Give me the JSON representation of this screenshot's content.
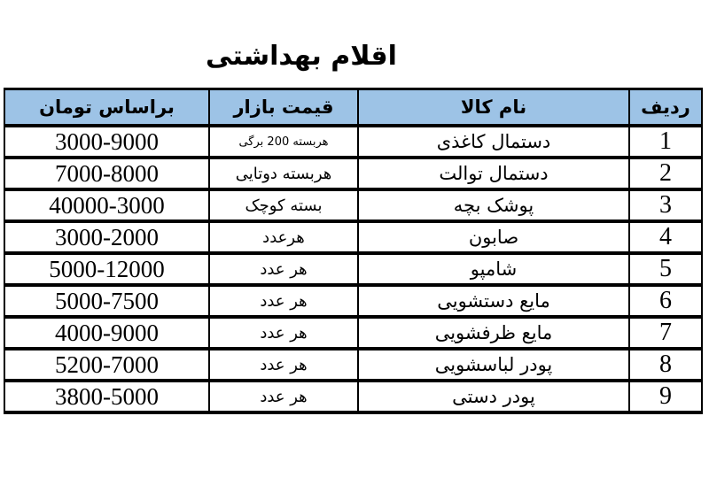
{
  "page": {
    "title": "اقلام بهداشتی"
  },
  "colors": {
    "header_bg": "#9DC3E6",
    "border": "#000000",
    "text": "#000000",
    "background": "#FFFFFF"
  },
  "table": {
    "headers": {
      "row_no": "ردیف",
      "item_name": "نام کالا",
      "market_price": "قیمت بازار",
      "price_toman": "براساس تومان"
    },
    "rows": [
      {
        "no": "1",
        "name": "دستمال کاغذی",
        "unit": "هربسته 200 برگی",
        "price": "3000-9000"
      },
      {
        "no": "2",
        "name": "دستمال توالت",
        "unit": "هربسته دوتایی",
        "price": "7000-8000"
      },
      {
        "no": "3",
        "name": "پوشک بچه",
        "unit": "بسته کوچک",
        "price": "40000-3000"
      },
      {
        "no": "4",
        "name": "صابون",
        "unit": "هرعدد",
        "price": "3000-2000"
      },
      {
        "no": "5",
        "name": "شامپو",
        "unit": "هر عدد",
        "price": "5000-12000"
      },
      {
        "no": "6",
        "name": "مایع دستشویی",
        "unit": "هر عدد",
        "price": "5000-7500"
      },
      {
        "no": "7",
        "name": "مایع ظرفشویی",
        "unit": "هر عدد",
        "price": "4000-9000"
      },
      {
        "no": "8",
        "name": "پودر لباسشویی",
        "unit": "هر عدد",
        "price": "5200-7000"
      },
      {
        "no": "9",
        "name": "پودر دستی",
        "unit": "هر عدد",
        "price": "3800-5000"
      }
    ]
  }
}
